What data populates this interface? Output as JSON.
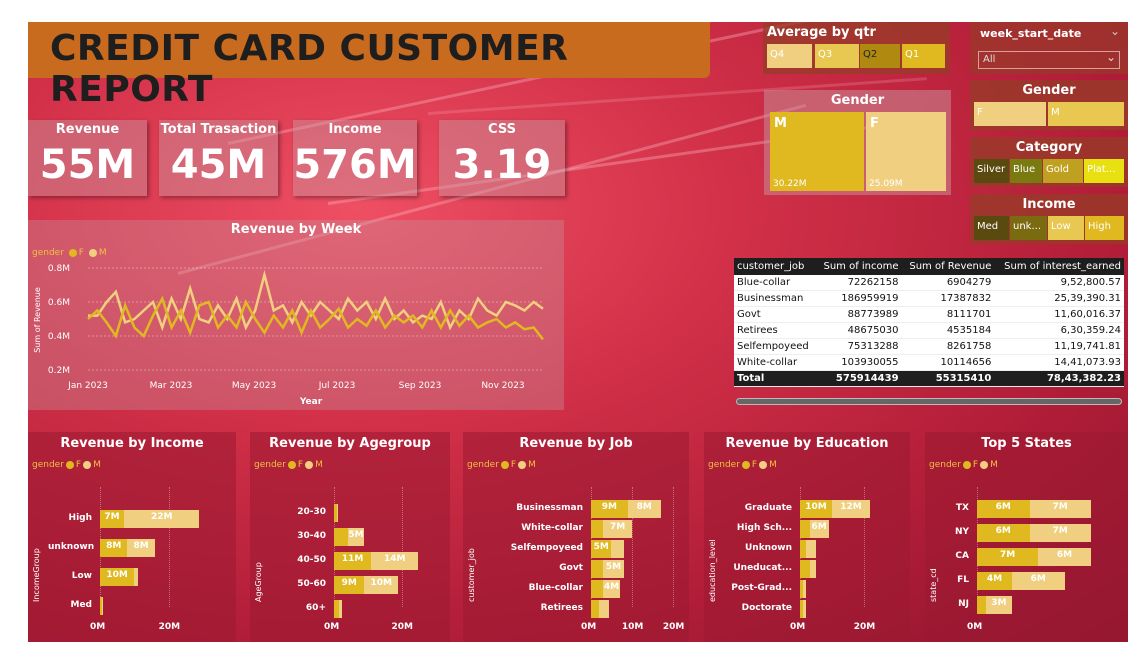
{
  "title": "CREDIT CARD CUSTOMER REPORT",
  "colors": {
    "F": "#f0d080",
    "M": "#e0b820",
    "bg": "#d13048",
    "banner": "#c96b1f"
  },
  "kpis": [
    {
      "label": "Revenue",
      "value": "55M"
    },
    {
      "label": "Total Trasaction",
      "value": "45M"
    },
    {
      "label": "Income",
      "value": "576M"
    },
    {
      "label": "CSS",
      "value": "3.19"
    }
  ],
  "slicers": {
    "qtr": {
      "title": "Average by qtr",
      "options": [
        "Q4",
        "Q3",
        "Q2",
        "Q1"
      ]
    },
    "week": {
      "title": "week_start_date",
      "selected": "All"
    },
    "gender_tree": {
      "title": "Gender",
      "M_label": "M",
      "F_label": "F",
      "M_value": "30.22M",
      "F_value": "25.09M"
    },
    "gender": {
      "title": "Gender",
      "options": [
        "F",
        "M"
      ]
    },
    "category": {
      "title": "Category",
      "options": [
        "Silver",
        "Blue",
        "Gold",
        "Plat..."
      ]
    },
    "income": {
      "title": "Income",
      "options": [
        "Med",
        "unk...",
        "Low",
        "High"
      ]
    }
  },
  "legend": {
    "label": "gender",
    "f": "F",
    "m": "M"
  },
  "job_table": {
    "headers": [
      "customer_job",
      "Sum of income",
      "Sum of Revenue",
      "Sum of interest_earned"
    ],
    "rows": [
      [
        "Blue-collar",
        "72262158",
        "6904279",
        "9,52,800.57"
      ],
      [
        "Businessman",
        "186959919",
        "17387832",
        "25,39,390.31"
      ],
      [
        "Govt",
        "88773989",
        "8111701",
        "11,60,016.37"
      ],
      [
        "Retirees",
        "48675030",
        "4535184",
        "6,30,359.24"
      ],
      [
        "Selfempoyeed",
        "75313288",
        "8261758",
        "11,19,741.81"
      ],
      [
        "White-collar",
        "103930055",
        "10114656",
        "14,41,073.93"
      ]
    ],
    "total": [
      "Total",
      "575914439",
      "55315410",
      "78,43,382.23"
    ]
  },
  "chart_data": [
    {
      "type": "line",
      "title": "Revenue by Week",
      "xlabel": "Year",
      "ylabel": "Sum of Revenue",
      "ylim": [
        0.2,
        0.8
      ],
      "yticks": [
        "0.2M",
        "0.4M",
        "0.6M",
        "0.8M"
      ],
      "xticks": [
        "Jan 2023",
        "Mar 2023",
        "May 2023",
        "Jul 2023",
        "Sep 2023",
        "Nov 2023"
      ],
      "series": [
        {
          "name": "F",
          "values": [
            0.52,
            0.52,
            0.6,
            0.66,
            0.48,
            0.5,
            0.55,
            0.6,
            0.45,
            0.62,
            0.5,
            0.68,
            0.5,
            0.48,
            0.58,
            0.5,
            0.62,
            0.45,
            0.55,
            0.76,
            0.55,
            0.58,
            0.48,
            0.6,
            0.52,
            0.6,
            0.55,
            0.5,
            0.62,
            0.55,
            0.6,
            0.5,
            0.62,
            0.5,
            0.55,
            0.48,
            0.52,
            0.5,
            0.6,
            0.45,
            0.55,
            0.5,
            0.62,
            0.55,
            0.52,
            0.6,
            0.58,
            0.55,
            0.6,
            0.56
          ]
        },
        {
          "name": "M",
          "values": [
            0.5,
            0.55,
            0.48,
            0.4,
            0.58,
            0.45,
            0.4,
            0.52,
            0.62,
            0.45,
            0.55,
            0.42,
            0.58,
            0.6,
            0.45,
            0.52,
            0.45,
            0.6,
            0.5,
            0.42,
            0.52,
            0.45,
            0.55,
            0.42,
            0.55,
            0.45,
            0.5,
            0.56,
            0.45,
            0.5,
            0.46,
            0.55,
            0.45,
            0.52,
            0.48,
            0.52,
            0.45,
            0.55,
            0.45,
            0.55,
            0.46,
            0.52,
            0.45,
            0.48,
            0.5,
            0.45,
            0.48,
            0.44,
            0.45,
            0.38
          ]
        }
      ]
    },
    {
      "type": "bar",
      "title": "Revenue by Income",
      "ylabel": "IncomeGroup",
      "categories": [
        "High",
        "unknown",
        "Low",
        "Med"
      ],
      "series": [
        {
          "name": "M",
          "values": [
            7,
            8,
            10,
            0.2
          ]
        },
        {
          "name": "F",
          "values": [
            22,
            8,
            1,
            0.1
          ]
        }
      ],
      "labels": {
        "M": [
          "7M",
          "8M",
          "10M",
          ""
        ],
        "F": [
          "22M",
          "8M",
          "",
          ""
        ]
      },
      "xticks": [
        "0M",
        "20M"
      ],
      "xmax": 35
    },
    {
      "type": "bar",
      "title": "Revenue by Agegroup",
      "ylabel": "AgeGroup",
      "categories": [
        "20-30",
        "30-40",
        "40-50",
        "50-60",
        "60+"
      ],
      "series": [
        {
          "name": "M",
          "values": [
            1,
            4,
            11,
            9,
            1.5
          ]
        },
        {
          "name": "F",
          "values": [
            0.3,
            5,
            14,
            10,
            1
          ]
        }
      ],
      "labels": {
        "M": [
          "",
          "",
          "11M",
          "9M",
          ""
        ],
        "F": [
          "",
          "5M",
          "14M",
          "10M",
          ""
        ]
      },
      "xticks": [
        "0M",
        "20M"
      ],
      "xmax": 32
    },
    {
      "type": "bar",
      "title": "Revenue by Job",
      "ylabel": "customer_job",
      "categories": [
        "Businessman",
        "White-collar",
        "Selfempoyeed",
        "Govt",
        "Blue-collar",
        "Retirees"
      ],
      "series": [
        {
          "name": "M",
          "values": [
            9,
            3,
            5,
            3,
            3,
            2
          ]
        },
        {
          "name": "F",
          "values": [
            8,
            7,
            3,
            5,
            4,
            2.5
          ]
        }
      ],
      "labels": {
        "M": [
          "9M",
          "",
          "5M",
          "",
          "",
          ""
        ],
        "F": [
          "8M",
          "7M",
          "",
          "5M",
          "4M",
          ""
        ]
      },
      "xticks": [
        "0M",
        "10M",
        "20M"
      ],
      "xmax": 22
    },
    {
      "type": "bar",
      "title": "Revenue by Education",
      "ylabel": "education_level",
      "categories": [
        "Graduate",
        "High Sch...",
        "Unknown",
        "Uneducat...",
        "Post-Grad...",
        "Doctorate"
      ],
      "series": [
        {
          "name": "M",
          "values": [
            10,
            3,
            2,
            3,
            1,
            1
          ]
        },
        {
          "name": "F",
          "values": [
            12,
            6,
            3,
            2,
            1,
            1
          ]
        }
      ],
      "labels": {
        "M": [
          "10M",
          "",
          "",
          "",
          "",
          ""
        ],
        "F": [
          "12M",
          "6M",
          "",
          "",
          "",
          ""
        ]
      },
      "xticks": [
        "0M",
        "20M"
      ],
      "xmax": 32
    },
    {
      "type": "bar",
      "title": "Top 5 States",
      "ylabel": "state_cd",
      "categories": [
        "TX",
        "NY",
        "CA",
        "FL",
        "NJ"
      ],
      "series": [
        {
          "name": "M",
          "values": [
            6,
            6,
            7,
            4,
            1
          ]
        },
        {
          "name": "F",
          "values": [
            7,
            7,
            6,
            6,
            3
          ]
        }
      ],
      "labels": {
        "M": [
          "6M",
          "6M",
          "7M",
          "4M",
          ""
        ],
        "F": [
          "7M",
          "7M",
          "6M",
          "6M",
          "3M"
        ]
      },
      "xticks": [
        "0M",
        "10M"
      ],
      "xmax": 16
    }
  ]
}
